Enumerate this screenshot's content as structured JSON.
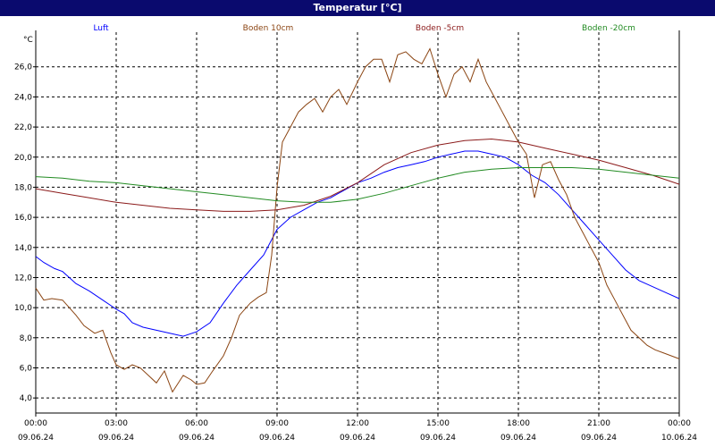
{
  "chart_data": {
    "type": "line",
    "title": "Temperatur [°C]",
    "ylabel": "°C",
    "xlabel": "",
    "ylim": [
      3.0,
      28.3
    ],
    "xlim": [
      0,
      24
    ],
    "grid": true,
    "legend_position": "top",
    "yticks": [
      "4,0",
      "6,0",
      "8,0",
      "10,0",
      "12,0",
      "14,0",
      "16,0",
      "18,0",
      "20,0",
      "22,0",
      "24,0",
      "26,0"
    ],
    "ytick_values": [
      4,
      6,
      8,
      10,
      12,
      14,
      16,
      18,
      20,
      22,
      24,
      26
    ],
    "xticks": [
      {
        "x": 0,
        "time": "00:00",
        "date": "09.06.24"
      },
      {
        "x": 3,
        "time": "03:00",
        "date": "09.06.24"
      },
      {
        "x": 6,
        "time": "06:00",
        "date": "09.06.24"
      },
      {
        "x": 9,
        "time": "09:00",
        "date": "09.06.24"
      },
      {
        "x": 12,
        "time": "12:00",
        "date": "09.06.24"
      },
      {
        "x": 15,
        "time": "15:00",
        "date": "09.06.24"
      },
      {
        "x": 18,
        "time": "18:00",
        "date": "09.06.24"
      },
      {
        "x": 21,
        "time": "21:00",
        "date": "09.06.24"
      },
      {
        "x": 24,
        "time": "00:00",
        "date": "10.06.24"
      }
    ],
    "series": [
      {
        "name": "Luft",
        "color": "#0000ff",
        "x": [
          0,
          0.3,
          0.7,
          1.0,
          1.5,
          2.0,
          2.5,
          3.0,
          3.3,
          3.6,
          4.0,
          4.5,
          5.0,
          5.5,
          6.0,
          6.5,
          7.0,
          7.5,
          8.0,
          8.5,
          9.0,
          9.5,
          10.0,
          10.5,
          11.0,
          11.5,
          12.0,
          12.5,
          13.0,
          13.5,
          14.0,
          14.5,
          15.0,
          15.5,
          16.0,
          16.5,
          17.0,
          17.5,
          18.0,
          18.5,
          19.0,
          19.5,
          20.0,
          20.5,
          21.0,
          21.5,
          22.0,
          22.5,
          23.0,
          23.5,
          24.0
        ],
        "y": [
          13.4,
          13.0,
          12.6,
          12.4,
          11.6,
          11.1,
          10.5,
          9.9,
          9.6,
          9.0,
          8.7,
          8.5,
          8.3,
          8.1,
          8.4,
          9.0,
          10.3,
          11.5,
          12.5,
          13.5,
          15.2,
          16.0,
          16.5,
          17.0,
          17.3,
          17.8,
          18.3,
          18.6,
          19.0,
          19.3,
          19.5,
          19.7,
          20.0,
          20.2,
          20.4,
          20.4,
          20.2,
          20.0,
          19.5,
          18.8,
          18.3,
          17.5,
          16.5,
          15.5,
          14.5,
          13.5,
          12.5,
          11.8,
          11.4,
          11.0,
          10.6
        ]
      },
      {
        "name": "Boden 10cm",
        "color": "#8b4513",
        "x": [
          0,
          0.3,
          0.6,
          1.0,
          1.5,
          1.8,
          2.2,
          2.5,
          2.8,
          3.0,
          3.3,
          3.6,
          3.9,
          4.2,
          4.5,
          4.8,
          5.1,
          5.5,
          5.8,
          6.0,
          6.3,
          6.6,
          7.0,
          7.3,
          7.6,
          8.0,
          8.3,
          8.6,
          8.8,
          9.0,
          9.2,
          9.5,
          9.8,
          10.1,
          10.4,
          10.7,
          11.0,
          11.3,
          11.6,
          12.0,
          12.3,
          12.6,
          12.9,
          13.2,
          13.5,
          13.8,
          14.1,
          14.4,
          14.7,
          15.0,
          15.3,
          15.6,
          15.9,
          16.2,
          16.5,
          16.8,
          17.1,
          17.4,
          17.7,
          18.0,
          18.3,
          18.6,
          18.9,
          19.2,
          19.5,
          19.8,
          20.1,
          20.4,
          20.7,
          21.0,
          21.3,
          21.6,
          21.9,
          22.2,
          22.5,
          22.8,
          23.1,
          23.4,
          23.7,
          24.0
        ],
        "y": [
          11.3,
          10.5,
          10.6,
          10.5,
          9.5,
          8.8,
          8.3,
          8.5,
          7.0,
          6.2,
          5.9,
          6.2,
          6.0,
          5.5,
          5.0,
          5.8,
          4.4,
          5.5,
          5.2,
          4.9,
          5.0,
          5.8,
          6.8,
          8.0,
          9.5,
          10.3,
          10.7,
          11.0,
          13.5,
          18.0,
          21.0,
          22.0,
          23.0,
          23.5,
          23.9,
          23.0,
          24.0,
          24.5,
          23.5,
          25.0,
          26.0,
          26.5,
          26.5,
          25.0,
          26.8,
          27.0,
          26.5,
          26.2,
          27.2,
          25.5,
          24.0,
          25.5,
          26.0,
          25.0,
          26.5,
          25.0,
          24.0,
          23.0,
          22.0,
          21.0,
          20.2,
          17.3,
          19.5,
          19.7,
          18.5,
          17.5,
          16.0,
          15.0,
          14.0,
          13.0,
          11.5,
          10.5,
          9.5,
          8.5,
          8.0,
          7.5,
          7.2,
          7.0,
          6.8,
          6.6
        ]
      },
      {
        "name": "Boden -5cm",
        "color": "#8b1a1a",
        "x": [
          0,
          1,
          2,
          3,
          4,
          5,
          6,
          7,
          8,
          9,
          10,
          11,
          12,
          13,
          14,
          15,
          16,
          17,
          18,
          19,
          20,
          21,
          22,
          23,
          24
        ],
        "y": [
          17.9,
          17.6,
          17.3,
          17.0,
          16.8,
          16.6,
          16.5,
          16.4,
          16.4,
          16.5,
          16.8,
          17.4,
          18.3,
          19.5,
          20.3,
          20.8,
          21.1,
          21.2,
          21.0,
          20.6,
          20.2,
          19.8,
          19.3,
          18.8,
          18.2
        ]
      },
      {
        "name": "Boden -20cm",
        "color": "#228b22",
        "x": [
          0,
          1,
          2,
          3,
          4,
          5,
          6,
          7,
          8,
          9,
          10,
          11,
          12,
          13,
          14,
          15,
          16,
          17,
          18,
          19,
          20,
          21,
          22,
          23,
          24
        ],
        "y": [
          18.7,
          18.6,
          18.4,
          18.3,
          18.1,
          17.9,
          17.7,
          17.5,
          17.3,
          17.1,
          17.0,
          17.0,
          17.2,
          17.6,
          18.1,
          18.6,
          19.0,
          19.2,
          19.3,
          19.3,
          19.3,
          19.2,
          19.0,
          18.8,
          18.6
        ]
      }
    ]
  }
}
